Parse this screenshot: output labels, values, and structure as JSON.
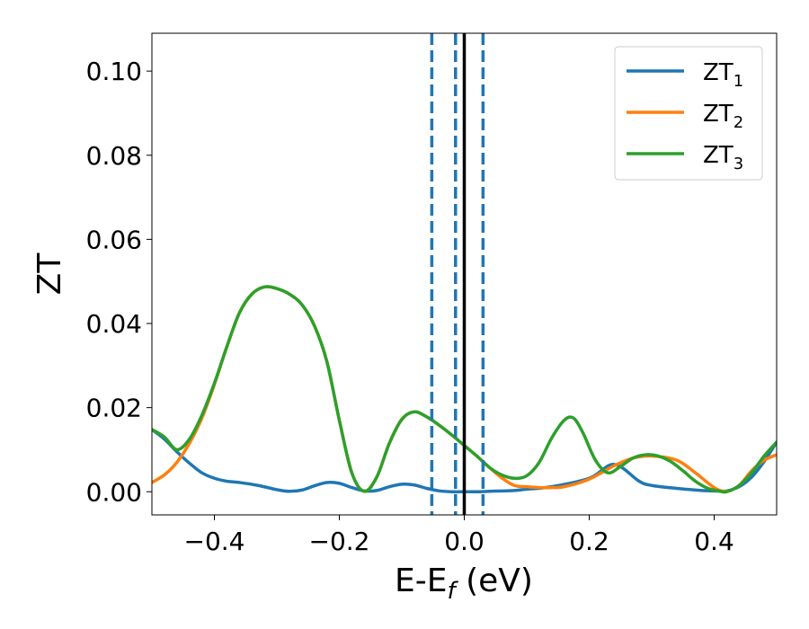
{
  "chart_data": {
    "type": "line",
    "xlabel": {
      "main": "E-E",
      "sub": "f",
      "tail": " (eV)"
    },
    "ylabel": "ZT",
    "xlim": [
      -0.5,
      0.5
    ],
    "ylim": [
      -0.0055,
      0.109
    ],
    "xticks": [
      -0.4,
      -0.2,
      0.0,
      0.2,
      0.4
    ],
    "xtick_labels": [
      "−0.4",
      "−0.2",
      "0.0",
      "0.2",
      "0.4"
    ],
    "yticks": [
      0.0,
      0.02,
      0.04,
      0.06,
      0.08,
      0.1
    ],
    "ytick_labels": [
      "0.00",
      "0.02",
      "0.04",
      "0.06",
      "0.08",
      "0.10"
    ],
    "grid": false,
    "legend_position": "top-right",
    "series": [
      {
        "name": {
          "main": "ZT",
          "sub": "1"
        },
        "color": "#1f77b4",
        "x": [
          -0.5,
          -0.48,
          -0.46,
          -0.44,
          -0.42,
          -0.4,
          -0.38,
          -0.36,
          -0.33,
          -0.3,
          -0.28,
          -0.26,
          -0.24,
          -0.22,
          -0.2,
          -0.18,
          -0.16,
          -0.14,
          -0.12,
          -0.1,
          -0.08,
          -0.06,
          -0.04,
          -0.02,
          0.0,
          0.02,
          0.04,
          0.06,
          0.08,
          0.1,
          0.14,
          0.2,
          0.24,
          0.28,
          0.3,
          0.34,
          0.38,
          0.4,
          0.42,
          0.44,
          0.46,
          0.48,
          0.5
        ],
        "y": [
          0.0148,
          0.0125,
          0.0095,
          0.0068,
          0.0045,
          0.0032,
          0.0025,
          0.0022,
          0.0015,
          0.0005,
          0.0001,
          0.0004,
          0.0014,
          0.0022,
          0.002,
          0.001,
          0.0002,
          0.0003,
          0.0012,
          0.0018,
          0.0016,
          0.0008,
          0.0002,
          0.0,
          0.0,
          0.0,
          0.0001,
          0.0002,
          0.0003,
          0.0006,
          0.0012,
          0.0032,
          0.0065,
          0.0025,
          0.0015,
          0.0008,
          0.0003,
          0.0002,
          0.0002,
          0.0012,
          0.0035,
          0.0072,
          0.0118
        ]
      },
      {
        "name": {
          "main": "ZT",
          "sub": "2"
        },
        "color": "#ff7f0e",
        "x": [
          -0.5,
          -0.48,
          -0.46,
          -0.44,
          -0.42,
          -0.4,
          -0.38,
          -0.36,
          -0.34,
          -0.32,
          -0.3,
          -0.28,
          -0.26,
          -0.24,
          -0.22,
          -0.2,
          -0.18,
          -0.16,
          -0.14,
          -0.12,
          -0.1,
          -0.08,
          -0.06,
          -0.04,
          -0.02,
          0.0,
          0.02,
          0.04,
          0.06,
          0.08,
          0.1,
          0.12,
          0.14,
          0.16,
          0.2,
          0.24,
          0.27,
          0.3,
          0.34,
          0.37,
          0.4,
          0.42,
          0.44,
          0.46,
          0.48,
          0.5
        ],
        "y": [
          0.0022,
          0.004,
          0.007,
          0.0115,
          0.0175,
          0.0255,
          0.0345,
          0.0425,
          0.047,
          0.0487,
          0.0483,
          0.047,
          0.0445,
          0.0395,
          0.031,
          0.017,
          0.0045,
          0.0001,
          0.0035,
          0.0115,
          0.0172,
          0.019,
          0.0178,
          0.0158,
          0.0135,
          0.011,
          0.0085,
          0.0058,
          0.0033,
          0.0015,
          0.0012,
          0.001,
          0.001,
          0.0012,
          0.003,
          0.0062,
          0.008,
          0.0085,
          0.0075,
          0.0045,
          0.001,
          0.0001,
          0.0015,
          0.005,
          0.0075,
          0.0088
        ]
      },
      {
        "name": {
          "main": "ZT",
          "sub": "3"
        },
        "color": "#2ca02c",
        "x": [
          -0.5,
          -0.48,
          -0.46,
          -0.44,
          -0.42,
          -0.4,
          -0.38,
          -0.36,
          -0.34,
          -0.32,
          -0.3,
          -0.28,
          -0.26,
          -0.24,
          -0.22,
          -0.2,
          -0.18,
          -0.16,
          -0.14,
          -0.12,
          -0.1,
          -0.08,
          -0.06,
          -0.04,
          -0.02,
          0.0,
          0.02,
          0.04,
          0.06,
          0.08,
          0.1,
          0.12,
          0.14,
          0.16,
          0.175,
          0.19,
          0.21,
          0.23,
          0.25,
          0.27,
          0.29,
          0.31,
          0.33,
          0.35,
          0.37,
          0.39,
          0.41,
          0.42,
          0.44,
          0.46,
          0.48,
          0.5
        ],
        "y": [
          0.0148,
          0.013,
          0.01,
          0.0125,
          0.0182,
          0.0258,
          0.0345,
          0.0425,
          0.047,
          0.0487,
          0.0483,
          0.047,
          0.0445,
          0.0395,
          0.031,
          0.017,
          0.0045,
          0.0001,
          0.0035,
          0.0115,
          0.0172,
          0.019,
          0.0178,
          0.0158,
          0.0135,
          0.011,
          0.0085,
          0.0058,
          0.004,
          0.0032,
          0.0038,
          0.007,
          0.0128,
          0.017,
          0.0175,
          0.014,
          0.0075,
          0.0045,
          0.006,
          0.008,
          0.0088,
          0.0085,
          0.0072,
          0.005,
          0.0025,
          0.0008,
          0.0001,
          0.0,
          0.0015,
          0.0045,
          0.0085,
          0.0118
        ]
      }
    ],
    "vlines": [
      {
        "x": 0.0,
        "style": "solid",
        "color": "#000000"
      },
      {
        "x": -0.052,
        "style": "dashed",
        "color": "#1f77b4"
      },
      {
        "x": -0.014,
        "style": "dashed",
        "color": "#1f77b4"
      },
      {
        "x": 0.03,
        "style": "dashed",
        "color": "#1f77b4"
      }
    ]
  }
}
